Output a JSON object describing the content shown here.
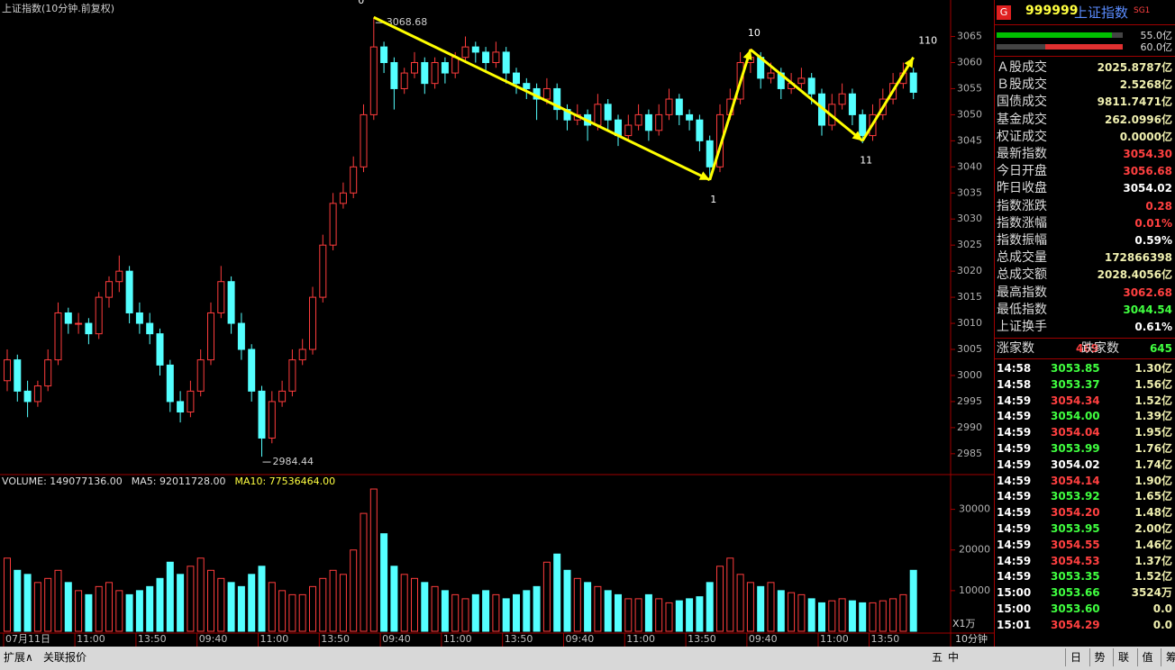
{
  "chart_data": {
    "type": "candlestick",
    "title": "上证指数(10分钟.前复权)",
    "up_color": "#ff3c3c",
    "down_color": "#54ffff",
    "arrow_color": "#ffff00",
    "candles": [
      [
        2999,
        3005,
        2997,
        3003
      ],
      [
        3003,
        3004,
        2995,
        2997
      ],
      [
        2997,
        2999,
        2992,
        2995
      ],
      [
        2995,
        2999,
        2994,
        2998
      ],
      [
        2998,
        3005,
        2997,
        3003
      ],
      [
        3003,
        3014,
        3002,
        3012
      ],
      [
        3012,
        3013,
        3008,
        3010
      ],
      [
        3010,
        3012,
        3008,
        3010
      ],
      [
        3010,
        3011,
        3006,
        3008
      ],
      [
        3008,
        3016,
        3007,
        3015
      ],
      [
        3015,
        3019,
        3013,
        3018
      ],
      [
        3018,
        3023,
        3016,
        3020
      ],
      [
        3020,
        3021,
        3010,
        3012
      ],
      [
        3012,
        3014,
        3008,
        3010
      ],
      [
        3010,
        3012,
        3006,
        3008
      ],
      [
        3008,
        3009,
        3000,
        3002
      ],
      [
        3002,
        3003,
        2993,
        2995
      ],
      [
        2995,
        2997,
        2991,
        2993
      ],
      [
        2993,
        2999,
        2992,
        2997
      ],
      [
        2997,
        3005,
        2996,
        3003
      ],
      [
        3003,
        3014,
        3002,
        3012
      ],
      [
        3012,
        3021,
        3011,
        3018
      ],
      [
        3018,
        3019,
        3008,
        3010
      ],
      [
        3010,
        3012,
        3003,
        3005
      ],
      [
        3005,
        3006,
        2995,
        2997
      ],
      [
        2997,
        2998,
        2984.44,
        2988
      ],
      [
        2988,
        2997,
        2987,
        2995
      ],
      [
        2995,
        2999,
        2994,
        2997
      ],
      [
        2997,
        3005,
        2996,
        3003
      ],
      [
        3003,
        3007,
        3002,
        3005
      ],
      [
        3005,
        3017,
        3004,
        3015
      ],
      [
        3015,
        3027,
        3014,
        3025
      ],
      [
        3025,
        3035,
        3024,
        3033
      ],
      [
        3033,
        3037,
        3032,
        3035
      ],
      [
        3035,
        3042,
        3034,
        3040
      ],
      [
        3040,
        3052,
        3039,
        3050
      ],
      [
        3050,
        3068.68,
        3049,
        3063
      ],
      [
        3063,
        3064,
        3058,
        3060
      ],
      [
        3060,
        3061,
        3051,
        3055
      ],
      [
        3055,
        3059,
        3054,
        3058
      ],
      [
        3058,
        3062,
        3057,
        3060
      ],
      [
        3060,
        3061,
        3054,
        3056
      ],
      [
        3056,
        3061,
        3055,
        3060
      ],
      [
        3060,
        3061,
        3056,
        3058
      ],
      [
        3058,
        3062,
        3057,
        3061
      ],
      [
        3061,
        3065,
        3060,
        3063
      ],
      [
        3063,
        3064,
        3060,
        3062
      ],
      [
        3062,
        3063,
        3058,
        3060
      ],
      [
        3060,
        3064,
        3059,
        3062
      ],
      [
        3062,
        3063,
        3056,
        3058
      ],
      [
        3058,
        3059,
        3054,
        3056
      ],
      [
        3056,
        3057,
        3053,
        3055
      ],
      [
        3055,
        3056,
        3049,
        3053
      ],
      [
        3053,
        3057,
        3052,
        3055
      ],
      [
        3055,
        3056,
        3049,
        3051
      ],
      [
        3051,
        3052,
        3047,
        3049
      ],
      [
        3049,
        3052,
        3048,
        3050
      ],
      [
        3050,
        3051,
        3045,
        3048
      ],
      [
        3048,
        3054,
        3047,
        3052
      ],
      [
        3052,
        3053,
        3047,
        3049
      ],
      [
        3049,
        3050,
        3044,
        3046
      ],
      [
        3046,
        3050,
        3045,
        3048
      ],
      [
        3048,
        3052,
        3047,
        3050
      ],
      [
        3050,
        3051,
        3045,
        3047
      ],
      [
        3047,
        3052,
        3046,
        3050
      ],
      [
        3050,
        3055,
        3049,
        3053
      ],
      [
        3053,
        3054,
        3048,
        3050
      ],
      [
        3050,
        3051,
        3047,
        3049
      ],
      [
        3049,
        3050,
        3043,
        3045
      ],
      [
        3045,
        3046,
        3037.5,
        3040
      ],
      [
        3040,
        3052,
        3039,
        3050
      ],
      [
        3050,
        3055,
        3049,
        3053
      ],
      [
        3053,
        3062,
        3052,
        3060
      ],
      [
        3060,
        3062.68,
        3058,
        3061
      ],
      [
        3061,
        3062,
        3055,
        3057
      ],
      [
        3057,
        3060,
        3056,
        3058
      ],
      [
        3058,
        3059,
        3053,
        3055
      ],
      [
        3055,
        3058,
        3054,
        3056
      ],
      [
        3056,
        3059,
        3055,
        3057
      ],
      [
        3057,
        3058,
        3052,
        3054
      ],
      [
        3054,
        3055,
        3046,
        3048
      ],
      [
        3048,
        3054,
        3047,
        3052
      ],
      [
        3052,
        3056,
        3051,
        3054
      ],
      [
        3054,
        3055,
        3048,
        3050
      ],
      [
        3050,
        3051,
        3044.54,
        3046
      ],
      [
        3046,
        3052,
        3045,
        3050
      ],
      [
        3050,
        3055,
        3049,
        3053
      ],
      [
        3053,
        3058,
        3052,
        3056
      ],
      [
        3056,
        3060,
        3055,
        3058
      ],
      [
        3058,
        3059,
        3053,
        3054.3
      ]
    ],
    "ylim": [
      2981,
      3072
    ],
    "yticks": [
      2985,
      2990,
      2995,
      3000,
      3005,
      3010,
      3015,
      3020,
      3025,
      3030,
      3035,
      3040,
      3045,
      3050,
      3055,
      3060,
      3065
    ],
    "xticks": [
      {
        "value": 0,
        "label": "07月11日"
      },
      {
        "value": 7,
        "label": "11:00"
      },
      {
        "value": 13,
        "label": "13:50"
      },
      {
        "value": 19,
        "label": "09:40"
      },
      {
        "value": 25,
        "label": "11:00"
      },
      {
        "value": 31,
        "label": "13:50"
      },
      {
        "value": 37,
        "label": "09:40"
      },
      {
        "value": 43,
        "label": "11:00"
      },
      {
        "value": 49,
        "label": "13:50"
      },
      {
        "value": 55,
        "label": "09:40"
      },
      {
        "value": 61,
        "label": "11:00"
      },
      {
        "value": 67,
        "label": "13:50"
      },
      {
        "value": 73,
        "label": "09:40"
      },
      {
        "value": 80,
        "label": "11:00"
      },
      {
        "value": 85,
        "label": "13:50"
      }
    ],
    "annotations": [
      {
        "label": "0",
        "index": 36,
        "value": 3068.68
      },
      {
        "label": "1",
        "index": 69,
        "value": 3037.5
      },
      {
        "label": "10",
        "index": 73,
        "value": 3062.5
      },
      {
        "label": "11",
        "index": 84,
        "value": 3045
      },
      {
        "label": "110",
        "index": 89,
        "value": 3061
      }
    ],
    "period": "10分钟",
    "volume": {
      "header": [
        {
          "text": "VOLUME: 149077136.00",
          "color": "#e0e0e0"
        },
        {
          "text": "MA5: 92011728.00",
          "color": "#e0e0e0"
        },
        {
          "text": "MA10: 77536464.00",
          "color": "#ffff40"
        }
      ],
      "unit": "X1万",
      "ylim": [
        0,
        37000
      ],
      "yticks": [
        10000,
        20000,
        30000
      ],
      "values": [
        18000,
        15000,
        14000,
        12000,
        13000,
        15000,
        12000,
        10000,
        9000,
        11000,
        12000,
        10000,
        9000,
        10000,
        11000,
        13000,
        17000,
        14000,
        16000,
        18000,
        15000,
        13000,
        12000,
        11000,
        14000,
        16000,
        12000,
        10000,
        9000,
        9000,
        11000,
        13000,
        15000,
        14000,
        20000,
        29000,
        35000,
        24000,
        16000,
        14000,
        13000,
        12000,
        11000,
        10000,
        9000,
        8000,
        9000,
        10000,
        9000,
        8000,
        9000,
        10000,
        11000,
        17000,
        19000,
        15000,
        13000,
        12000,
        11000,
        10000,
        9000,
        8000,
        8000,
        9000,
        8000,
        7000,
        7500,
        8000,
        8500,
        12000,
        16000,
        18000,
        14000,
        12000,
        11000,
        12000,
        10000,
        9500,
        9000,
        8000,
        7000,
        7500,
        8000,
        7500,
        7000,
        7000,
        7500,
        8000,
        9000,
        15000
      ]
    }
  },
  "quote": {
    "badge": "G",
    "code": "999999",
    "name": "上证指数",
    "tag": "SG1",
    "bars": [
      "55.0亿",
      "60.0亿"
    ],
    "stats": [
      {
        "label": "Ａ股成交",
        "value": "2025.8787亿",
        "color": "#f0f0b0"
      },
      {
        "label": "Ｂ股成交",
        "value": "2.5268亿",
        "color": "#f0f0b0"
      },
      {
        "label": "国债成交",
        "value": "9811.7471亿",
        "color": "#f0f0b0"
      },
      {
        "label": "基金成交",
        "value": "262.0996亿",
        "color": "#f0f0b0"
      },
      {
        "label": "权证成交",
        "value": "0.0000亿",
        "color": "#f0f0b0"
      },
      {
        "label": "最新指数",
        "value": "3054.30",
        "color": "#ff4040"
      },
      {
        "label": "今日开盘",
        "value": "3056.68",
        "color": "#ff4040"
      },
      {
        "label": "昨日收盘",
        "value": "3054.02",
        "color": "#ffffff"
      },
      {
        "label": "指数涨跌",
        "value": "0.28",
        "color": "#ff4040"
      },
      {
        "label": "指数涨幅",
        "value": "0.01%",
        "color": "#ff4040"
      },
      {
        "label": "指数振幅",
        "value": "0.59%",
        "color": "#ffffff"
      },
      {
        "label": "总成交量",
        "value": "172866398",
        "color": "#f0f0b0"
      },
      {
        "label": "总成交额",
        "value": "2028.4056亿",
        "color": "#f0f0b0"
      },
      {
        "label": "最高指数",
        "value": "3062.68",
        "color": "#ff4040"
      },
      {
        "label": "最低指数",
        "value": "3044.54",
        "color": "#40ff40"
      },
      {
        "label": "上证换手",
        "value": "0.61%",
        "color": "#ffffff"
      }
    ],
    "breadth": {
      "up_label": "涨家数",
      "up": 469,
      "down_label": "跌家数",
      "down": 645
    },
    "ticks": [
      {
        "time": "14:58",
        "price": "3053.85",
        "amount": "1.30亿",
        "color": "#40ff40"
      },
      {
        "time": "14:58",
        "price": "3053.37",
        "amount": "1.56亿",
        "color": "#40ff40"
      },
      {
        "time": "14:59",
        "price": "3054.34",
        "amount": "1.52亿",
        "color": "#ff4040"
      },
      {
        "time": "14:59",
        "price": "3054.00",
        "amount": "1.39亿",
        "color": "#40ff40"
      },
      {
        "time": "14:59",
        "price": "3054.04",
        "amount": "1.95亿",
        "color": "#ff4040"
      },
      {
        "time": "14:59",
        "price": "3053.99",
        "amount": "1.76亿",
        "color": "#40ff40"
      },
      {
        "time": "14:59",
        "price": "3054.02",
        "amount": "1.74亿",
        "color": "#ffffff"
      },
      {
        "time": "14:59",
        "price": "3054.14",
        "amount": "1.90亿",
        "color": "#ff4040"
      },
      {
        "time": "14:59",
        "price": "3053.92",
        "amount": "1.65亿",
        "color": "#40ff40"
      },
      {
        "time": "14:59",
        "price": "3054.20",
        "amount": "1.48亿",
        "color": "#ff4040"
      },
      {
        "time": "14:59",
        "price": "3053.95",
        "amount": "2.00亿",
        "color": "#40ff40"
      },
      {
        "time": "14:59",
        "price": "3054.55",
        "amount": "1.46亿",
        "color": "#ff4040"
      },
      {
        "time": "14:59",
        "price": "3054.53",
        "amount": "1.37亿",
        "color": "#ff4040"
      },
      {
        "time": "14:59",
        "price": "3053.35",
        "amount": "1.52亿",
        "color": "#40ff40"
      },
      {
        "time": "15:00",
        "price": "3053.66",
        "amount": "3524万",
        "color": "#40ff40"
      },
      {
        "time": "15:00",
        "price": "3053.60",
        "amount": "0.0",
        "color": "#40ff40"
      },
      {
        "time": "15:01",
        "price": "3054.29",
        "amount": "0.0",
        "color": "#ff4040"
      }
    ]
  },
  "toolbar": {
    "left": [
      "扩展∧",
      "关联报价"
    ],
    "ime": [
      "五",
      "中"
    ],
    "right": [
      "日",
      "势",
      "联",
      "值",
      "筹"
    ]
  }
}
